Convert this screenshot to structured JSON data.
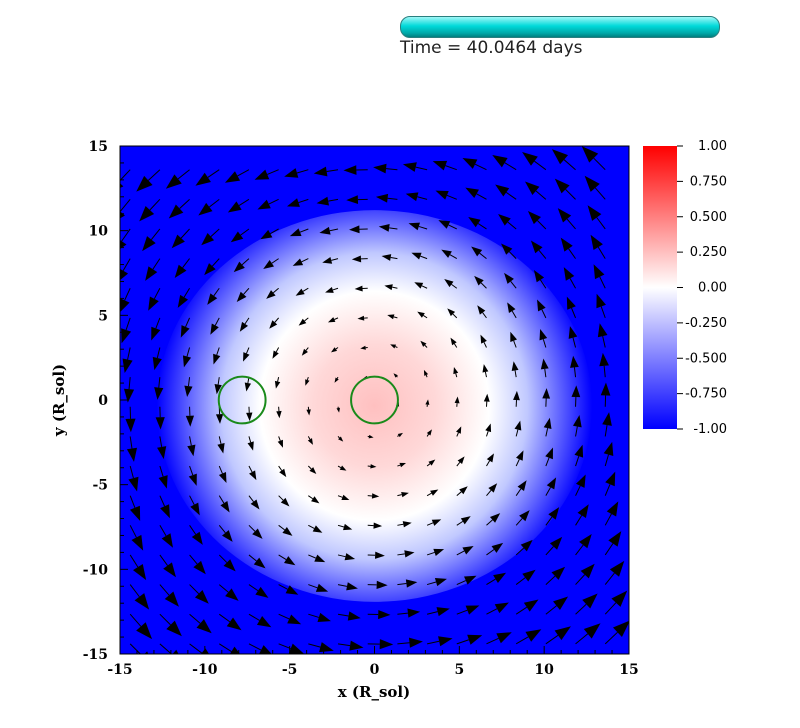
{
  "header": {
    "time_text": "Time = 40.0464 days"
  },
  "chart_data": {
    "type": "heatmap",
    "title": "",
    "xlabel": "x (R_sol)",
    "ylabel": "y (R_sol)",
    "xlim": [
      -15,
      15
    ],
    "ylim": [
      -15,
      15
    ],
    "xticks": [
      -15,
      -10,
      -5,
      0,
      5,
      10,
      15
    ],
    "yticks": [
      15,
      10,
      5,
      0,
      -5,
      -10,
      -15
    ],
    "colorbar": {
      "min": -1.0,
      "max": 1.0,
      "ticks": [
        "1.00",
        "0.750",
        "0.500",
        "0.250",
        "0.00",
        "-0.250",
        "-0.500",
        "-0.750",
        "-1.00"
      ],
      "colormap": [
        "#0000ff",
        "#ffffff",
        "#ff0000"
      ]
    },
    "field": {
      "center": [
        0,
        0
      ],
      "white_radius": 9.5,
      "red_core_radius": 4.0
    },
    "circles": [
      {
        "name": "companion",
        "x": -7.8,
        "y": 0.0,
        "r": 1.2,
        "color": "#1a8a1a"
      },
      {
        "name": "core",
        "x": 0.0,
        "y": 0.0,
        "r": 1.2,
        "color": "#1a8a1a"
      }
    ],
    "vectors": {
      "rotation": "counter-clockwise",
      "spacing": 1.75
    }
  }
}
